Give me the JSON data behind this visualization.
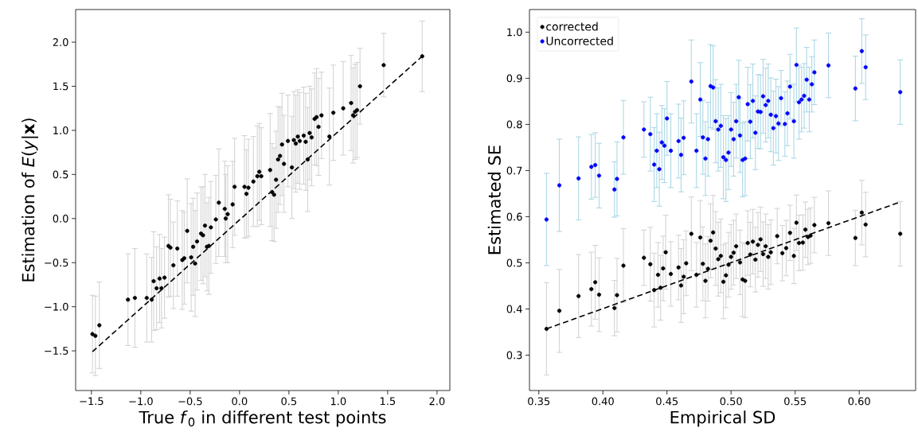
{
  "chart_data": [
    {
      "type": "scatter",
      "xlabel": "True *f*$_{0}$ in different test points",
      "ylabel": "Estimation of *E*(*y*|**x**)",
      "xlim": [
        -1.66,
        2.13
      ],
      "ylim": [
        -1.95,
        2.37
      ],
      "xticks": [
        {
          "value": -1.5,
          "label": "−1.5"
        },
        {
          "value": -1.0,
          "label": "−1.0"
        },
        {
          "value": -0.5,
          "label": "−0.5"
        },
        {
          "value": 0,
          "label": "0.0"
        },
        0.5,
        {
          "value": 1.0,
          "label": "1.0"
        },
        1.5,
        {
          "value": 2.0,
          "label": "2.0"
        }
      ],
      "yticks": [
        {
          "value": -1.5,
          "label": "−1.5"
        },
        {
          "value": -1.0,
          "label": "−1.0"
        },
        {
          "value": -0.5,
          "label": "−0.5"
        },
        {
          "value": 0,
          "label": "0.0"
        },
        0.5,
        {
          "value": 1.0,
          "label": "1.0"
        },
        1.5,
        {
          "value": 2.0,
          "label": "2.0"
        }
      ],
      "series": [
        {
          "color": "#000000",
          "marker": "circle",
          "x": [
            -1.49,
            -1.46,
            -1.42,
            -1.13,
            -1.06,
            -0.94,
            -0.89,
            -0.87,
            -0.84,
            -0.81,
            -0.79,
            -0.76,
            -0.72,
            -0.7,
            -0.67,
            -0.63,
            -0.58,
            -0.56,
            -0.53,
            -0.49,
            -0.47,
            -0.45,
            -0.43,
            -0.39,
            -0.37,
            -0.35,
            -0.33,
            -0.31,
            -0.29,
            -0.24,
            -0.21,
            -0.15,
            -0.14,
            -0.12,
            -0.07,
            -0.05,
            0.05,
            0.09,
            0.07,
            0.14,
            0.18,
            0.22,
            0.2,
            0.31,
            0.33,
            0.35,
            0.37,
            0.39,
            0.41,
            0.43,
            0.45,
            0.49,
            0.53,
            0.55,
            0.57,
            0.59,
            0.61,
            0.65,
            0.67,
            0.71,
            0.73,
            0.69,
            0.76,
            0.78,
            0.8,
            0.83,
            0.91,
            0.95,
            1.05,
            1.13,
            1.15,
            1.17,
            1.19,
            1.22,
            1.46,
            1.85
          ],
          "values": [
            -1.31,
            -1.33,
            -1.21,
            -0.92,
            -0.9,
            -0.9,
            -0.92,
            -0.71,
            -0.79,
            -0.68,
            -0.79,
            -0.67,
            -0.31,
            -0.33,
            -0.53,
            -0.34,
            -0.47,
            -0.45,
            -0.14,
            -0.44,
            -0.32,
            -0.51,
            -0.26,
            -0.17,
            -0.19,
            -0.08,
            -0.32,
            -0.31,
            -0.1,
            -0.01,
            0.18,
            0.11,
            0.0,
            0.05,
            0.16,
            0.36,
            0.36,
            0.35,
            0.28,
            0.42,
            0.48,
            0.48,
            0.53,
            0.55,
            0.3,
            0.27,
            0.44,
            0.67,
            0.71,
            0.84,
            0.62,
            0.88,
            0.58,
            0.89,
            0.85,
            0.93,
            0.88,
            0.94,
            0.87,
            0.97,
            0.92,
            0.67,
            1.13,
            1.15,
            1.04,
            1.17,
            0.93,
            1.2,
            1.25,
            1.31,
            1.17,
            1.21,
            1.23,
            1.5,
            1.74,
            1.84
          ],
          "errors": [
            0.44,
            0.45,
            0.49,
            0.52,
            0.56,
            0.5,
            0.48,
            0.56,
            0.47,
            0.5,
            0.45,
            0.46,
            0.58,
            0.55,
            0.49,
            0.54,
            0.56,
            0.52,
            0.59,
            0.61,
            0.55,
            0.6,
            0.55,
            0.53,
            0.55,
            0.58,
            0.5,
            0.55,
            0.52,
            0.5,
            0.61,
            0.54,
            0.5,
            0.55,
            0.49,
            0.55,
            0.58,
            0.55,
            0.5,
            0.51,
            0.57,
            0.55,
            0.55,
            0.64,
            0.55,
            0.53,
            0.55,
            0.6,
            0.55,
            0.58,
            0.55,
            0.52,
            0.58,
            0.55,
            0.55,
            0.53,
            0.55,
            0.55,
            0.55,
            0.53,
            0.55,
            0.59,
            0.52,
            0.55,
            0.55,
            0.49,
            0.55,
            0.54,
            0.53,
            0.54,
            0.54,
            0.54,
            0.54,
            0.43,
            0.36,
            0.4
          ]
        },
        {
          "type": "line",
          "color": "#000000",
          "marker": "none",
          "line_style": "dashed",
          "x": [
            -1.49,
            1.85
          ],
          "values": [
            -1.51,
            1.84
          ]
        }
      ]
    },
    {
      "type": "scatter",
      "xlabel": "Empirical SD",
      "ylabel": "Estimated SE",
      "legend": "top left",
      "xlim": [
        0.3427,
        0.644
      ],
      "ylim": [
        0.2233,
        1.049
      ],
      "xticks": [
        0.35,
        {
          "value": 0.4,
          "label": "0.40"
        },
        0.45,
        {
          "value": 0.5,
          "label": "0.50"
        },
        0.55,
        {
          "value": 0.6,
          "label": "0.60"
        }
      ],
      "yticks": [
        0.3,
        0.4,
        0.5,
        0.6,
        0.7,
        0.8,
        0.9,
        {
          "value": 1.0,
          "label": "1.0"
        }
      ],
      "series": [
        {
          "name": "corrected",
          "color": "#000000",
          "marker": "circle",
          "x": [
            0.356,
            0.366,
            0.381,
            0.391,
            0.394,
            0.397,
            0.409,
            0.411,
            0.416,
            0.432,
            0.437,
            0.44,
            0.443,
            0.445,
            0.447,
            0.449,
            0.453,
            0.459,
            0.461,
            0.463,
            0.465,
            0.469,
            0.473,
            0.476,
            0.478,
            0.48,
            0.482,
            0.484,
            0.486,
            0.488,
            0.49,
            0.492,
            0.494,
            0.496,
            0.498,
            0.5,
            0.502,
            0.504,
            0.507,
            0.509,
            0.511,
            0.513,
            0.517,
            0.515,
            0.519,
            0.521,
            0.523,
            0.527,
            0.525,
            0.529,
            0.531,
            0.536,
            0.54,
            0.546,
            0.543,
            0.549,
            0.551,
            0.553,
            0.556,
            0.558,
            0.56,
            0.565,
            0.562,
            0.576,
            0.597,
            0.602,
            0.605,
            0.632
          ],
          "values": [
            0.357,
            0.396,
            0.428,
            0.443,
            0.458,
            0.431,
            0.402,
            0.43,
            0.494,
            0.511,
            0.497,
            0.441,
            0.474,
            0.446,
            0.488,
            0.523,
            0.476,
            0.49,
            0.451,
            0.47,
            0.499,
            0.563,
            0.474,
            0.555,
            0.498,
            0.461,
            0.487,
            0.548,
            0.566,
            0.531,
            0.508,
            0.515,
            0.459,
            0.473,
            0.496,
            0.513,
            0.522,
            0.536,
            0.501,
            0.464,
            0.461,
            0.543,
            0.546,
            0.518,
            0.507,
            0.539,
            0.551,
            0.536,
            0.519,
            0.513,
            0.523,
            0.558,
            0.521,
            0.565,
            0.532,
            0.515,
            0.587,
            0.543,
            0.544,
            0.572,
            0.556,
            0.582,
            0.559,
            0.586,
            0.554,
            0.609,
            0.583,
            0.563
          ],
          "errors": [
            0.1,
            0.09,
            0.09,
            0.08,
            0.08,
            0.08,
            0.06,
            0.08,
            0.08,
            0.06,
            0.08,
            0.08,
            0.07,
            0.07,
            0.07,
            0.08,
            0.07,
            0.07,
            0.08,
            0.08,
            0.07,
            0.08,
            0.07,
            0.08,
            0.08,
            0.08,
            0.07,
            0.08,
            0.08,
            0.08,
            0.08,
            0.08,
            0.08,
            0.07,
            0.07,
            0.07,
            0.07,
            0.07,
            0.07,
            0.08,
            0.08,
            0.07,
            0.07,
            0.07,
            0.07,
            0.07,
            0.07,
            0.07,
            0.07,
            0.07,
            0.07,
            0.06,
            0.06,
            0.06,
            0.06,
            0.06,
            0.06,
            0.06,
            0.06,
            0.06,
            0.06,
            0.06,
            0.06,
            0.07,
            0.06,
            0.07,
            0.07,
            0.07
          ]
        },
        {
          "name": "Uncorrected",
          "color": "#0000ff",
          "marker": "circle",
          "x": [
            0.356,
            0.366,
            0.381,
            0.391,
            0.394,
            0.397,
            0.409,
            0.411,
            0.416,
            0.432,
            0.437,
            0.44,
            0.442,
            0.444,
            0.446,
            0.448,
            0.45,
            0.453,
            0.459,
            0.461,
            0.463,
            0.469,
            0.473,
            0.476,
            0.478,
            0.48,
            0.482,
            0.484,
            0.486,
            0.488,
            0.49,
            0.492,
            0.494,
            0.496,
            0.498,
            0.5,
            0.502,
            0.504,
            0.506,
            0.507,
            0.509,
            0.511,
            0.513,
            0.515,
            0.517,
            0.519,
            0.521,
            0.523,
            0.525,
            0.527,
            0.529,
            0.531,
            0.533,
            0.535,
            0.537,
            0.539,
            0.542,
            0.544,
            0.546,
            0.549,
            0.551,
            0.553,
            0.555,
            0.557,
            0.559,
            0.561,
            0.563,
            0.565,
            0.576,
            0.597,
            0.602,
            0.605,
            0.632
          ],
          "values": [
            0.594,
            0.668,
            0.683,
            0.708,
            0.712,
            0.689,
            0.659,
            0.682,
            0.772,
            0.789,
            0.779,
            0.713,
            0.743,
            0.703,
            0.761,
            0.754,
            0.813,
            0.743,
            0.764,
            0.734,
            0.771,
            0.893,
            0.743,
            0.854,
            0.772,
            0.726,
            0.768,
            0.883,
            0.88,
            0.807,
            0.789,
            0.797,
            0.729,
            0.723,
            0.739,
            0.789,
            0.768,
            0.807,
            0.859,
            0.776,
            0.723,
            0.726,
            0.844,
            0.806,
            0.851,
            0.782,
            0.828,
            0.827,
            0.861,
            0.842,
            0.851,
            0.821,
            0.792,
            0.818,
            0.802,
            0.857,
            0.801,
            0.824,
            0.882,
            0.807,
            0.929,
            0.848,
            0.854,
            0.862,
            0.897,
            0.854,
            0.887,
            0.913,
            0.928,
            0.878,
            0.959,
            0.924,
            0.87
          ],
          "errors": [
            0.1,
            0.1,
            0.09,
            0.07,
            0.07,
            0.07,
            0.06,
            0.08,
            0.08,
            0.06,
            0.08,
            0.08,
            0.08,
            0.08,
            0.08,
            0.08,
            0.08,
            0.08,
            0.08,
            0.08,
            0.08,
            0.09,
            0.08,
            0.08,
            0.08,
            0.08,
            0.08,
            0.09,
            0.09,
            0.09,
            0.09,
            0.09,
            0.09,
            0.09,
            0.08,
            0.08,
            0.08,
            0.08,
            0.08,
            0.08,
            0.08,
            0.08,
            0.08,
            0.08,
            0.08,
            0.08,
            0.08,
            0.08,
            0.08,
            0.08,
            0.08,
            0.08,
            0.08,
            0.08,
            0.08,
            0.06,
            0.07,
            0.07,
            0.07,
            0.08,
            0.08,
            0.08,
            0.07,
            0.07,
            0.07,
            0.07,
            0.06,
            0.07,
            0.07,
            0.07,
            0.07,
            0.07,
            0.07
          ]
        },
        {
          "type": "line",
          "color": "#000000",
          "marker": "none",
          "line_style": "dashed",
          "x": [
            0.356,
            0.632
          ],
          "values": [
            0.357,
            0.632
          ]
        }
      ]
    }
  ]
}
